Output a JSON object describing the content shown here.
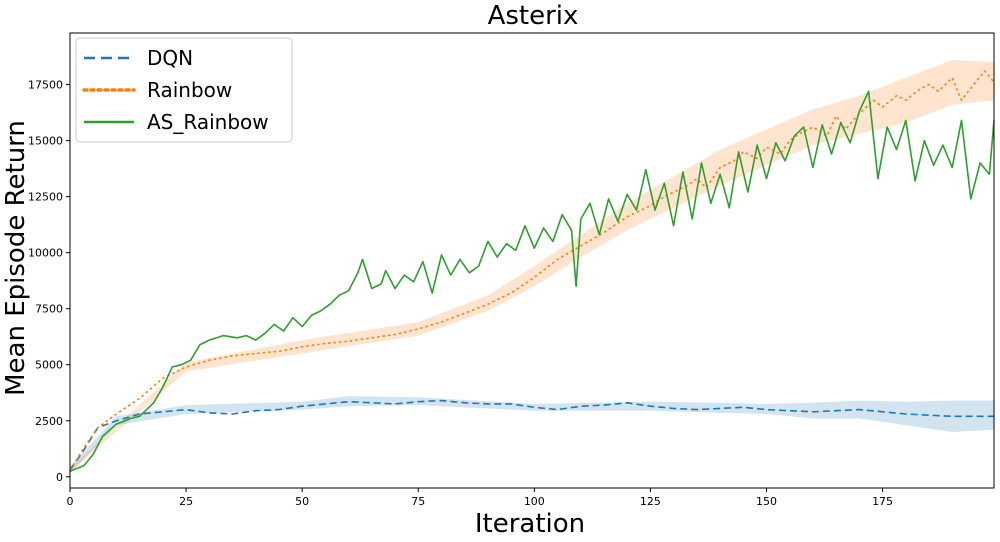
{
  "chart_data": {
    "type": "line",
    "title": "Asterix",
    "xlabel": "Iteration",
    "ylabel": "Mean Episode Return",
    "xlim": [
      0,
      199
    ],
    "ylim": [
      -500,
      19800
    ],
    "xticks": [
      0,
      25,
      50,
      75,
      100,
      125,
      150,
      175
    ],
    "yticks": [
      0,
      2500,
      5000,
      7500,
      10000,
      12500,
      15000,
      17500
    ],
    "grid": false,
    "legend_position": "top-left",
    "series": [
      {
        "name": "DQN",
        "color": "#1f77b4",
        "style": "dashed",
        "points": [
          [
            0,
            300
          ],
          [
            3,
            1200
          ],
          [
            6,
            2200
          ],
          [
            10,
            2500
          ],
          [
            15,
            2800
          ],
          [
            20,
            2900
          ],
          [
            25,
            3000
          ],
          [
            30,
            2850
          ],
          [
            35,
            2800
          ],
          [
            40,
            2950
          ],
          [
            45,
            3000
          ],
          [
            50,
            3150
          ],
          [
            55,
            3250
          ],
          [
            60,
            3350
          ],
          [
            65,
            3300
          ],
          [
            70,
            3250
          ],
          [
            75,
            3350
          ],
          [
            80,
            3400
          ],
          [
            85,
            3300
          ],
          [
            90,
            3250
          ],
          [
            95,
            3250
          ],
          [
            100,
            3100
          ],
          [
            105,
            3000
          ],
          [
            110,
            3150
          ],
          [
            115,
            3200
          ],
          [
            120,
            3300
          ],
          [
            125,
            3150
          ],
          [
            130,
            3050
          ],
          [
            135,
            3000
          ],
          [
            140,
            3050
          ],
          [
            145,
            3100
          ],
          [
            150,
            3000
          ],
          [
            155,
            2950
          ],
          [
            160,
            2900
          ],
          [
            165,
            2950
          ],
          [
            170,
            3000
          ],
          [
            175,
            2900
          ],
          [
            180,
            2800
          ],
          [
            185,
            2750
          ],
          [
            190,
            2700
          ],
          [
            195,
            2700
          ],
          [
            199,
            2700
          ]
        ],
        "band": [
          [
            0,
            150,
            450
          ],
          [
            10,
            2300,
            2700
          ],
          [
            25,
            2800,
            3200
          ],
          [
            50,
            3000,
            3350
          ],
          [
            60,
            3150,
            3600
          ],
          [
            75,
            3200,
            3550
          ],
          [
            100,
            2950,
            3250
          ],
          [
            125,
            2950,
            3350
          ],
          [
            140,
            2850,
            3300
          ],
          [
            150,
            2800,
            3250
          ],
          [
            160,
            2600,
            3300
          ],
          [
            170,
            2600,
            3400
          ],
          [
            180,
            2300,
            3350
          ],
          [
            190,
            2000,
            3400
          ],
          [
            199,
            2100,
            3400
          ]
        ]
      },
      {
        "name": "Rainbow",
        "color": "#ff7f0e",
        "style": "dotted",
        "points": [
          [
            0,
            300
          ],
          [
            3,
            1300
          ],
          [
            6,
            2200
          ],
          [
            10,
            2800
          ],
          [
            15,
            3500
          ],
          [
            20,
            4400
          ],
          [
            25,
            4900
          ],
          [
            30,
            5200
          ],
          [
            35,
            5400
          ],
          [
            40,
            5500
          ],
          [
            45,
            5600
          ],
          [
            50,
            5800
          ],
          [
            55,
            5950
          ],
          [
            60,
            6050
          ],
          [
            65,
            6200
          ],
          [
            70,
            6350
          ],
          [
            75,
            6600
          ],
          [
            80,
            6900
          ],
          [
            85,
            7300
          ],
          [
            90,
            7700
          ],
          [
            95,
            8200
          ],
          [
            100,
            8900
          ],
          [
            105,
            9700
          ],
          [
            110,
            10300
          ],
          [
            115,
            10900
          ],
          [
            120,
            11600
          ],
          [
            125,
            12100
          ],
          [
            128,
            12500
          ],
          [
            130,
            12700
          ],
          [
            133,
            13000
          ],
          [
            135,
            13300
          ],
          [
            137,
            12900
          ],
          [
            140,
            13800
          ],
          [
            143,
            14100
          ],
          [
            145,
            14500
          ],
          [
            148,
            14200
          ],
          [
            150,
            14700
          ],
          [
            153,
            14400
          ],
          [
            155,
            15000
          ],
          [
            157,
            15300
          ],
          [
            160,
            15600
          ],
          [
            163,
            15200
          ],
          [
            165,
            16100
          ],
          [
            167,
            15500
          ],
          [
            170,
            16200
          ],
          [
            173,
            16800
          ],
          [
            175,
            16500
          ],
          [
            178,
            17000
          ],
          [
            180,
            16800
          ],
          [
            183,
            17300
          ],
          [
            185,
            17500
          ],
          [
            187,
            17200
          ],
          [
            190,
            17800
          ],
          [
            192,
            16800
          ],
          [
            195,
            17600
          ],
          [
            197,
            18100
          ],
          [
            199,
            17600
          ]
        ],
        "band": [
          [
            0,
            200,
            400
          ],
          [
            25,
            4700,
            5100
          ],
          [
            50,
            5500,
            6100
          ],
          [
            75,
            6300,
            6900
          ],
          [
            90,
            7400,
            8100
          ],
          [
            100,
            8500,
            9400
          ],
          [
            110,
            9800,
            10800
          ],
          [
            120,
            11000,
            12200
          ],
          [
            130,
            12000,
            13400
          ],
          [
            140,
            13000,
            14600
          ],
          [
            150,
            13900,
            15500
          ],
          [
            160,
            14800,
            16400
          ],
          [
            170,
            15300,
            17000
          ],
          [
            180,
            15800,
            17800
          ],
          [
            190,
            16600,
            18600
          ],
          [
            199,
            16800,
            18500
          ]
        ]
      },
      {
        "name": "AS_Rainbow",
        "color": "#2ca02c",
        "style": "solid",
        "points": [
          [
            0,
            250
          ],
          [
            3,
            500
          ],
          [
            5,
            1000
          ],
          [
            7,
            1800
          ],
          [
            10,
            2350
          ],
          [
            13,
            2600
          ],
          [
            15,
            2700
          ],
          [
            18,
            3300
          ],
          [
            20,
            4000
          ],
          [
            22,
            4900
          ],
          [
            24,
            5000
          ],
          [
            26,
            5200
          ],
          [
            28,
            5900
          ],
          [
            30,
            6100
          ],
          [
            33,
            6300
          ],
          [
            36,
            6200
          ],
          [
            38,
            6300
          ],
          [
            40,
            6100
          ],
          [
            42,
            6400
          ],
          [
            44,
            6800
          ],
          [
            46,
            6500
          ],
          [
            48,
            7100
          ],
          [
            50,
            6700
          ],
          [
            52,
            7200
          ],
          [
            54,
            7400
          ],
          [
            56,
            7700
          ],
          [
            58,
            8100
          ],
          [
            60,
            8300
          ],
          [
            62,
            9100
          ],
          [
            63,
            9700
          ],
          [
            65,
            8400
          ],
          [
            67,
            8600
          ],
          [
            68,
            9200
          ],
          [
            70,
            8400
          ],
          [
            72,
            9000
          ],
          [
            74,
            8700
          ],
          [
            76,
            9600
          ],
          [
            78,
            8200
          ],
          [
            80,
            9900
          ],
          [
            82,
            9000
          ],
          [
            84,
            9700
          ],
          [
            86,
            9100
          ],
          [
            88,
            9400
          ],
          [
            90,
            10500
          ],
          [
            92,
            9800
          ],
          [
            94,
            10400
          ],
          [
            96,
            10100
          ],
          [
            98,
            11200
          ],
          [
            100,
            10200
          ],
          [
            102,
            11100
          ],
          [
            104,
            10500
          ],
          [
            106,
            11700
          ],
          [
            108,
            11000
          ],
          [
            109,
            8500
          ],
          [
            110,
            11500
          ],
          [
            112,
            12200
          ],
          [
            114,
            10800
          ],
          [
            116,
            12400
          ],
          [
            118,
            11400
          ],
          [
            120,
            12600
          ],
          [
            122,
            11900
          ],
          [
            124,
            13700
          ],
          [
            126,
            11900
          ],
          [
            128,
            13100
          ],
          [
            130,
            11200
          ],
          [
            132,
            13600
          ],
          [
            134,
            11500
          ],
          [
            136,
            14000
          ],
          [
            138,
            12200
          ],
          [
            140,
            13500
          ],
          [
            142,
            12000
          ],
          [
            144,
            14500
          ],
          [
            146,
            12700
          ],
          [
            148,
            14800
          ],
          [
            150,
            13300
          ],
          [
            152,
            14900
          ],
          [
            154,
            14100
          ],
          [
            156,
            15200
          ],
          [
            158,
            15600
          ],
          [
            160,
            13800
          ],
          [
            162,
            15700
          ],
          [
            164,
            14400
          ],
          [
            166,
            15800
          ],
          [
            168,
            14900
          ],
          [
            170,
            16300
          ],
          [
            172,
            17200
          ],
          [
            174,
            13300
          ],
          [
            176,
            15600
          ],
          [
            178,
            14600
          ],
          [
            180,
            15900
          ],
          [
            182,
            13200
          ],
          [
            184,
            15000
          ],
          [
            186,
            13900
          ],
          [
            188,
            14800
          ],
          [
            190,
            13800
          ],
          [
            192,
            15900
          ],
          [
            194,
            12400
          ],
          [
            196,
            14000
          ],
          [
            198,
            13500
          ],
          [
            199,
            15900
          ]
        ]
      }
    ]
  }
}
